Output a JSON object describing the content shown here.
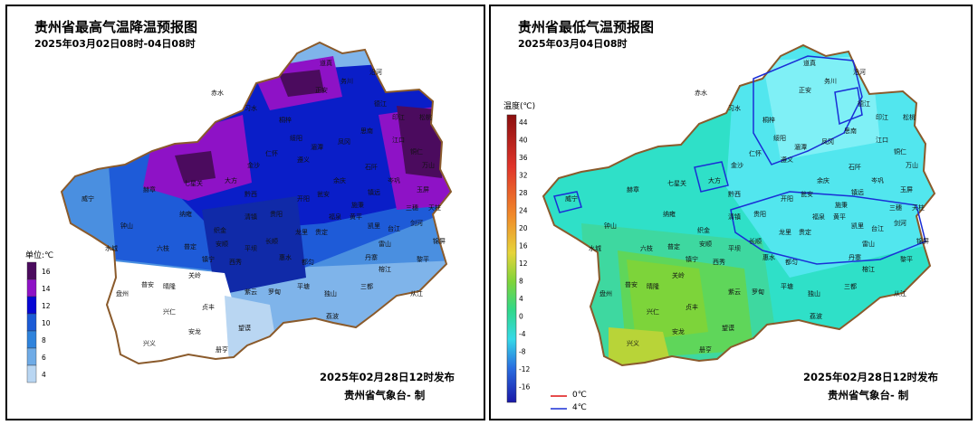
{
  "left_map": {
    "title": "贵州省最高气温降温预报图",
    "subtitle": "2025年03月02日08时-04日08时",
    "issue": "2025年02月28日12时发布",
    "agency": "贵州省气象台- 制",
    "legend_title": "单位:℃",
    "legend_values": [
      "16",
      "14",
      "12",
      "10",
      "8",
      "6",
      "4"
    ],
    "legend_colors": [
      "#4b0b5e",
      "#8e12c6",
      "#0606d4",
      "#1b5bd6",
      "#2f83dc",
      "#6fabe6",
      "#b9d6f2"
    ],
    "places": [
      "赤水",
      "习水",
      "桐梓",
      "道真",
      "正安",
      "务川",
      "沿河",
      "德江",
      "印江",
      "松桃",
      "思南",
      "凤冈",
      "湄潭",
      "遵义",
      "绥阳",
      "仁怀",
      "金沙",
      "大方",
      "黔西",
      "七星关",
      "赫章",
      "威宁",
      "纳雍",
      "织金",
      "清镇",
      "贵阳",
      "开阳",
      "瓮安",
      "余庆",
      "石阡",
      "江口",
      "铜仁",
      "万山",
      "玉屏",
      "岑巩",
      "镇远",
      "施秉",
      "黄平",
      "凯里",
      "台江",
      "剑河",
      "锦屏",
      "天柱",
      "三穗",
      "雷山",
      "榕江",
      "黎平",
      "从江",
      "丹寨",
      "三都",
      "独山",
      "荔波",
      "平塘",
      "都匀",
      "福泉",
      "贵定",
      "龙里",
      "惠水",
      "长顺",
      "罗甸",
      "紫云",
      "望谟",
      "册亨",
      "安龙",
      "兴义",
      "兴仁",
      "贞丰",
      "普安",
      "晴隆",
      "关岭",
      "镇宁",
      "盘州",
      "水城",
      "六枝",
      "钟山",
      "普定",
      "安顺",
      "平坝",
      "西秀"
    ]
  },
  "right_map": {
    "title": "贵州省最低气温预报图",
    "subtitle": "2025年03月04日08时",
    "issue": "2025年02月28日12时发布",
    "agency": "贵州省气象台- 制",
    "legend_title": "温度(℃)",
    "legend_values": [
      "44",
      "40",
      "36",
      "32",
      "28",
      "24",
      "20",
      "16",
      "12",
      "8",
      "4",
      "0",
      "-4",
      "-8",
      "-12",
      "-16"
    ],
    "contour_0": "0℃",
    "contour_4": "4℃",
    "color_0c": "#d11",
    "color_4c": "#1a2ed6"
  }
}
